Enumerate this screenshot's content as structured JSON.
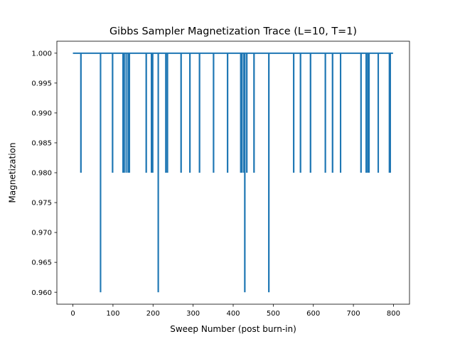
{
  "chart_data": {
    "type": "line",
    "title": "Gibbs Sampler Magnetization Trace (L=10, T=1)",
    "xlabel": "Sweep Number (post burn-in)",
    "ylabel": "Magnetization",
    "xlim": [
      -40,
      840
    ],
    "ylim": [
      0.958,
      1.002
    ],
    "xticks": [
      0,
      100,
      200,
      300,
      400,
      500,
      600,
      700,
      800
    ],
    "xtick_labels": [
      "0",
      "100",
      "200",
      "300",
      "400",
      "500",
      "600",
      "700",
      "800"
    ],
    "yticks": [
      0.96,
      0.965,
      0.97,
      0.975,
      0.98,
      0.985,
      0.99,
      0.995,
      1.0
    ],
    "ytick_labels": [
      "0.960",
      "0.965",
      "0.970",
      "0.975",
      "0.980",
      "0.985",
      "0.990",
      "0.995",
      "1.000"
    ],
    "grid": false,
    "legend": "none",
    "color": "#1f77b4",
    "baseline": 1.0,
    "dips": [
      {
        "x": 20,
        "y": 0.98
      },
      {
        "x": 69,
        "y": 0.96
      },
      {
        "x": 99,
        "y": 0.98
      },
      {
        "x": 125,
        "y": 0.98
      },
      {
        "x": 128,
        "y": 0.98
      },
      {
        "x": 133,
        "y": 0.98
      },
      {
        "x": 138,
        "y": 0.98
      },
      {
        "x": 141,
        "y": 0.98
      },
      {
        "x": 183,
        "y": 0.98
      },
      {
        "x": 196,
        "y": 0.98
      },
      {
        "x": 199,
        "y": 0.98
      },
      {
        "x": 213,
        "y": 0.96
      },
      {
        "x": 232,
        "y": 0.98
      },
      {
        "x": 236,
        "y": 0.98
      },
      {
        "x": 270,
        "y": 0.98
      },
      {
        "x": 292,
        "y": 0.98
      },
      {
        "x": 316,
        "y": 0.98
      },
      {
        "x": 351,
        "y": 0.98
      },
      {
        "x": 386,
        "y": 0.98
      },
      {
        "x": 419,
        "y": 0.98
      },
      {
        "x": 422,
        "y": 0.98
      },
      {
        "x": 427,
        "y": 0.98
      },
      {
        "x": 429,
        "y": 0.96
      },
      {
        "x": 434,
        "y": 0.98
      },
      {
        "x": 452,
        "y": 0.98
      },
      {
        "x": 489,
        "y": 0.96
      },
      {
        "x": 551,
        "y": 0.98
      },
      {
        "x": 568,
        "y": 0.98
      },
      {
        "x": 593,
        "y": 0.98
      },
      {
        "x": 630,
        "y": 0.98
      },
      {
        "x": 648,
        "y": 0.98
      },
      {
        "x": 668,
        "y": 0.98
      },
      {
        "x": 719,
        "y": 0.98
      },
      {
        "x": 732,
        "y": 0.98
      },
      {
        "x": 736,
        "y": 0.98
      },
      {
        "x": 739,
        "y": 0.98
      },
      {
        "x": 762,
        "y": 0.98
      },
      {
        "x": 790,
        "y": 0.98
      },
      {
        "x": 792,
        "y": 0.98
      }
    ],
    "series": [
      {
        "x_start": 0,
        "x_end": 799
      }
    ]
  }
}
